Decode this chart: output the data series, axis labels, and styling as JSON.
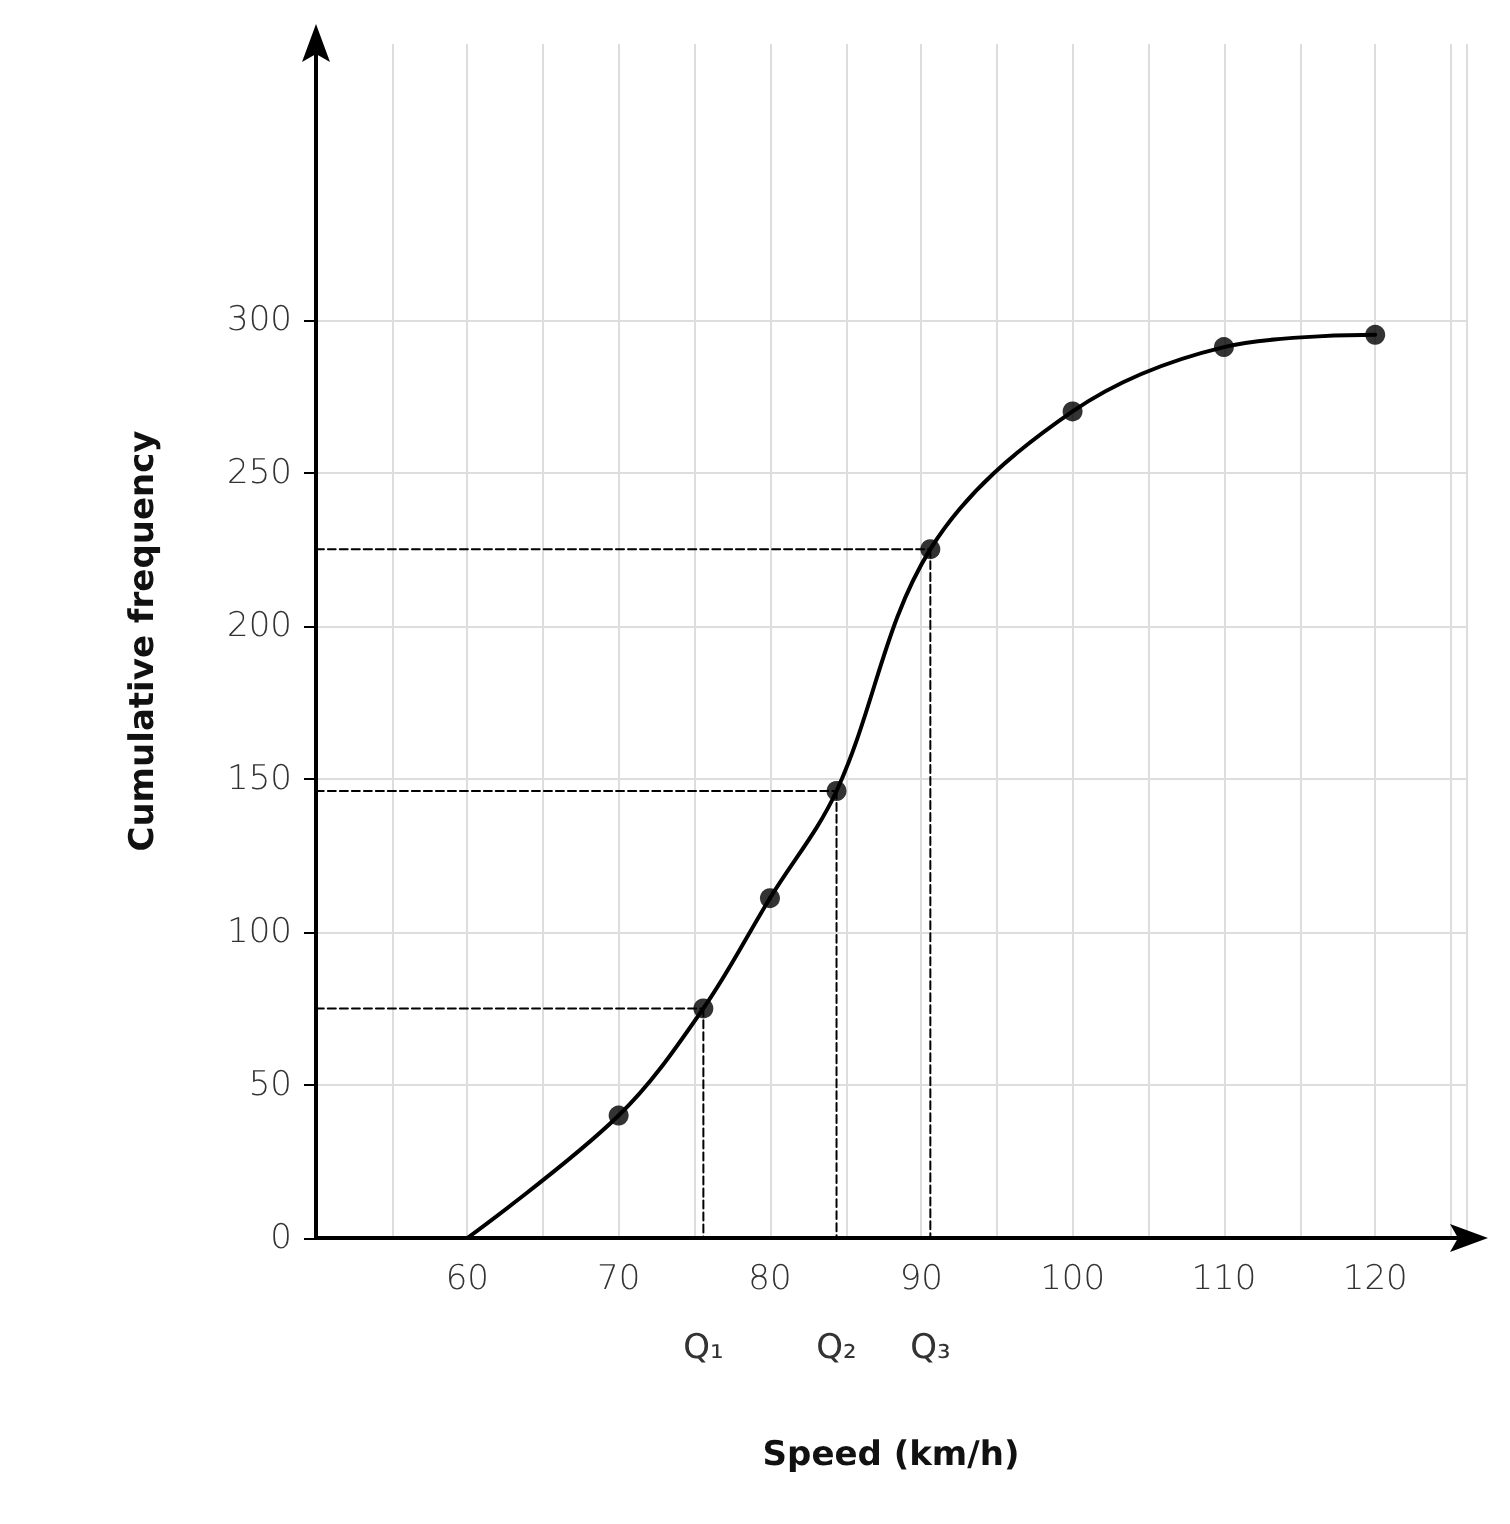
{
  "chart_data": {
    "type": "line",
    "xlabel": "Speed (km/h)",
    "ylabel": "Cumulative frequency",
    "xlim": [
      50,
      126
    ],
    "ylim": [
      0,
      390
    ],
    "xticks": [
      60,
      70,
      80,
      90,
      100,
      110,
      120
    ],
    "yticks": [
      0,
      50,
      100,
      150,
      200,
      250,
      300
    ],
    "grid": true,
    "series": [
      {
        "color": "#000000",
        "marker": "none",
        "line_style": "solid",
        "x": [
          60,
          70,
          75.6,
          80,
          84.4,
          90.6,
          100,
          110,
          120
        ],
        "values": [
          0,
          40,
          75,
          111,
          146,
          225,
          270,
          291,
          295
        ]
      },
      {
        "type": "scatter",
        "color": "#000000",
        "marker": "circle",
        "x": [
          70,
          75.6,
          80,
          84.4,
          90.6,
          100,
          110,
          120
        ],
        "values": [
          40,
          75,
          111,
          146,
          225,
          270,
          291,
          295
        ]
      },
      {
        "color": "#000000",
        "marker": "none",
        "line_style": "dashed",
        "x": [
          50,
          75.6
        ],
        "values": [
          75,
          75
        ]
      },
      {
        "color": "#000000",
        "marker": "none",
        "line_style": "dashed",
        "x": [
          75.6,
          75.6
        ],
        "values": [
          75,
          0
        ]
      },
      {
        "color": "#000000",
        "marker": "none",
        "line_style": "dashed",
        "x": [
          50,
          84.4
        ],
        "values": [
          146,
          146
        ]
      },
      {
        "color": "#000000",
        "marker": "none",
        "line_style": "dashed",
        "x": [
          84.4,
          84.4
        ],
        "values": [
          146,
          0
        ]
      },
      {
        "color": "#000000",
        "marker": "none",
        "line_style": "dashed",
        "x": [
          50,
          90.6
        ],
        "values": [
          225,
          225
        ]
      },
      {
        "color": "#000000",
        "marker": "none",
        "line_style": "dashed",
        "x": [
          90.6,
          90.6
        ],
        "values": [
          225,
          0
        ]
      }
    ],
    "annotations": [
      {
        "text": "Q₁",
        "x": 75.6,
        "y": 0
      },
      {
        "text": "Q₂",
        "x": 84.4,
        "y": 0
      },
      {
        "text": "Q₃",
        "x": 90.6,
        "y": 0
      }
    ]
  }
}
